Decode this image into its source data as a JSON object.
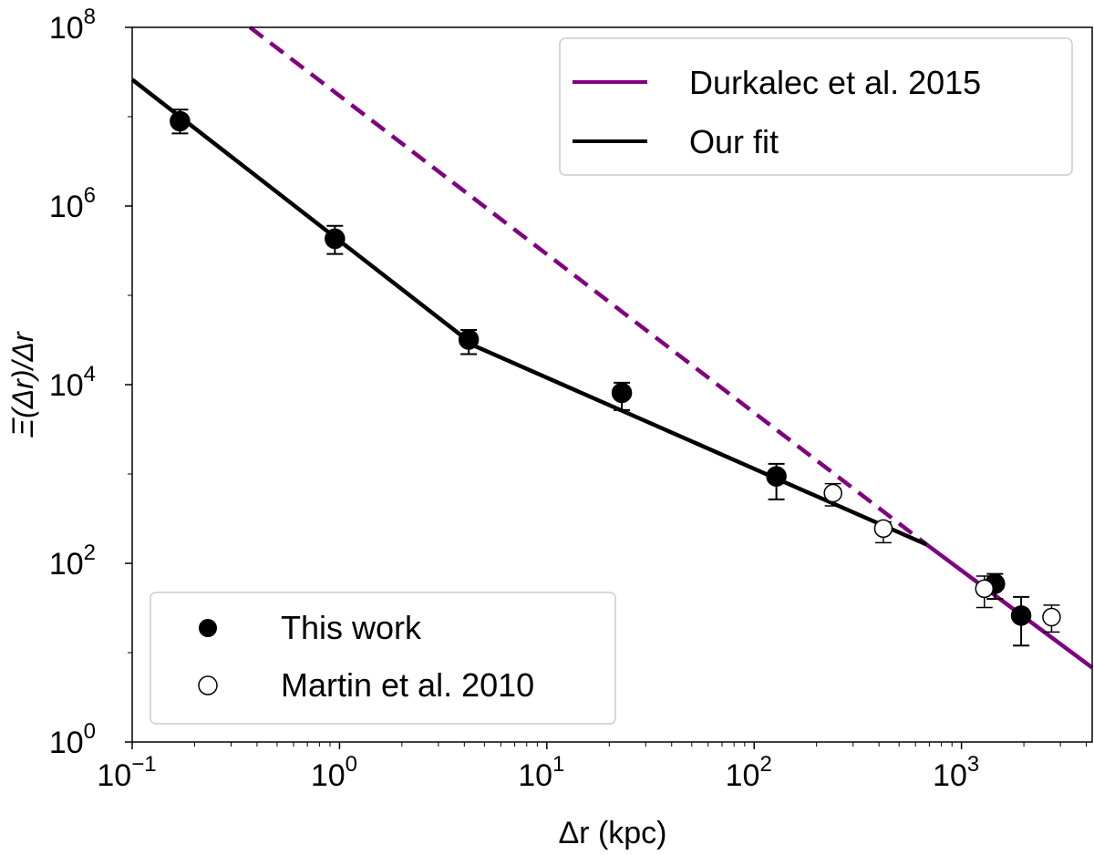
{
  "chart_data": {
    "type": "scatter",
    "xlabel": "Δr (kpc)",
    "ylabel": "Ξ(Δr)/Δr",
    "xscale": "log",
    "yscale": "log",
    "xlim": [
      0.1,
      4270
    ],
    "ylim": [
      1,
      100000000
    ],
    "grid": false,
    "x_ticks": [
      {
        "base": "10",
        "exp": "−1",
        "value": 0.1
      },
      {
        "base": "10",
        "exp": "0",
        "value": 1
      },
      {
        "base": "10",
        "exp": "1",
        "value": 10
      },
      {
        "base": "10",
        "exp": "2",
        "value": 100
      },
      {
        "base": "10",
        "exp": "3",
        "value": 1000
      }
    ],
    "y_ticks": [
      {
        "base": "10",
        "exp": "0",
        "value": 1
      },
      {
        "base": "10",
        "exp": "2",
        "value": 100
      },
      {
        "base": "10",
        "exp": "4",
        "value": 10000
      },
      {
        "base": "10",
        "exp": "6",
        "value": 1000000
      },
      {
        "base": "10",
        "exp": "8",
        "value": 100000000
      }
    ],
    "series": [
      {
        "name": "This work",
        "kind": "points",
        "marker": "filled-circle",
        "color": "#000000",
        "points": [
          {
            "x": 0.17,
            "y": 8900000,
            "ylo": 6500000,
            "yhi": 12000000
          },
          {
            "x": 0.95,
            "y": 430000,
            "ylo": 290000,
            "yhi": 600000
          },
          {
            "x": 4.2,
            "y": 32000,
            "ylo": 22000,
            "yhi": 41000
          },
          {
            "x": 23,
            "y": 8100,
            "ylo": 5200,
            "yhi": 10500
          },
          {
            "x": 128,
            "y": 940,
            "ylo": 520,
            "yhi": 1300
          },
          {
            "x": 1450,
            "y": 59,
            "ylo": 40,
            "yhi": 76
          },
          {
            "x": 1940,
            "y": 26,
            "ylo": 12,
            "yhi": 42
          }
        ]
      },
      {
        "name": "Martin et al. 2010",
        "kind": "points",
        "marker": "open-circle",
        "color": "#000000",
        "points": [
          {
            "x": 240,
            "y": 610,
            "ylo": 440,
            "yhi": 780
          },
          {
            "x": 420,
            "y": 245,
            "ylo": 170,
            "yhi": 290
          },
          {
            "x": 1290,
            "y": 52,
            "ylo": 32,
            "yhi": 72
          },
          {
            "x": 2720,
            "y": 25,
            "ylo": 17,
            "yhi": 34
          }
        ]
      },
      {
        "name": "Durkalec et al. 2015",
        "kind": "line",
        "color": "#800080",
        "solid": [
          [
            680,
            162
          ],
          [
            4270,
            6.8
          ]
        ],
        "dashed": [
          [
            0.37,
            100000000
          ],
          [
            680,
            162
          ]
        ]
      },
      {
        "name": "Our fit",
        "kind": "line",
        "color": "#000000",
        "points": [
          [
            0.1,
            26000000
          ],
          [
            4.5,
            27000
          ],
          [
            680,
            162
          ]
        ]
      }
    ],
    "legends": [
      {
        "placement": "top-right",
        "entries": [
          "Durkalec et al. 2015",
          "Our fit"
        ]
      },
      {
        "placement": "bottom-left",
        "entries": [
          "This work",
          "Martin et al. 2010"
        ]
      }
    ]
  }
}
